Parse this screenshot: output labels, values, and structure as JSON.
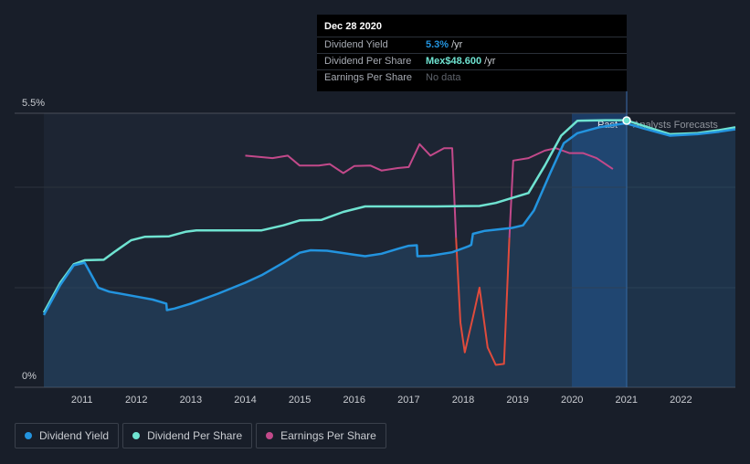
{
  "tooltip": {
    "date": "Dec 28 2020",
    "dividend_yield_label": "Dividend Yield",
    "dividend_yield_value": "5.3%",
    "dividend_yield_unit": "/yr",
    "dps_label": "Dividend Per Share",
    "dps_value": "Mex$48.600",
    "dps_unit": "/yr",
    "eps_label": "Earnings Per Share",
    "eps_value": "No data"
  },
  "regions": {
    "past": "Past",
    "forecast": "Analysts Forecasts"
  },
  "legend": {
    "dividend_yield": "Dividend Yield",
    "dividend_per_share": "Dividend Per Share",
    "earnings_per_share": "Earnings Per Share"
  },
  "colors": {
    "background": "#181e29",
    "dividend_yield": "#2394df",
    "dividend_per_share": "#6fe3d1",
    "earnings_per_share": "#c2498a",
    "eps_negative": "#e04b3c",
    "past_region": "#1d2533",
    "tooltip_yield": "#2394df",
    "tooltip_dps": "#6fe3d1"
  },
  "chart_data": {
    "type": "line",
    "y_axis_ticks": [
      "0%",
      "5.5%"
    ],
    "ylim_percent": [
      0,
      5.5
    ],
    "x_ticks": [
      "2011",
      "2012",
      "2013",
      "2014",
      "2015",
      "2016",
      "2017",
      "2018",
      "2019",
      "2020",
      "2021",
      "2022"
    ],
    "xlim": [
      2010.3,
      2023.0
    ],
    "highlight_date": 2020.99,
    "forecast_start": 2020.99,
    "series": [
      {
        "name": "Dividend Yield",
        "key": "dividend_yield",
        "unit": "% (scaled 0-5.5)",
        "points": [
          [
            2010.3,
            1.45
          ],
          [
            2010.6,
            2.05
          ],
          [
            2010.85,
            2.45
          ],
          [
            2011.05,
            2.5
          ],
          [
            2011.15,
            2.3
          ],
          [
            2011.3,
            2.0
          ],
          [
            2011.5,
            1.92
          ],
          [
            2012.0,
            1.82
          ],
          [
            2012.3,
            1.76
          ],
          [
            2012.55,
            1.68
          ],
          [
            2012.56,
            1.55
          ],
          [
            2012.7,
            1.58
          ],
          [
            2013.0,
            1.68
          ],
          [
            2013.5,
            1.88
          ],
          [
            2014.0,
            2.1
          ],
          [
            2014.3,
            2.25
          ],
          [
            2014.7,
            2.5
          ],
          [
            2015.0,
            2.7
          ],
          [
            2015.2,
            2.75
          ],
          [
            2015.5,
            2.74
          ],
          [
            2016.0,
            2.66
          ],
          [
            2016.2,
            2.63
          ],
          [
            2016.5,
            2.68
          ],
          [
            2016.8,
            2.78
          ],
          [
            2017.0,
            2.84
          ],
          [
            2017.15,
            2.85
          ],
          [
            2017.16,
            2.63
          ],
          [
            2017.4,
            2.64
          ],
          [
            2017.8,
            2.71
          ],
          [
            2018.1,
            2.83
          ],
          [
            2018.15,
            2.86
          ],
          [
            2018.18,
            3.08
          ],
          [
            2018.4,
            3.14
          ],
          [
            2018.9,
            3.2
          ],
          [
            2019.1,
            3.25
          ],
          [
            2019.3,
            3.55
          ],
          [
            2019.6,
            4.3
          ],
          [
            2019.85,
            4.9
          ],
          [
            2020.1,
            5.1
          ],
          [
            2020.5,
            5.22
          ],
          [
            2020.99,
            5.3
          ],
          [
            2021.3,
            5.2
          ],
          [
            2021.8,
            5.05
          ],
          [
            2022.3,
            5.08
          ],
          [
            2022.7,
            5.13
          ],
          [
            2023.0,
            5.18
          ]
        ]
      },
      {
        "name": "Dividend Per Share",
        "key": "dividend_per_share",
        "unit": "scaled 0-5.5",
        "points": [
          [
            2010.3,
            1.5
          ],
          [
            2010.6,
            2.1
          ],
          [
            2010.85,
            2.47
          ],
          [
            2011.05,
            2.55
          ],
          [
            2011.4,
            2.56
          ],
          [
            2011.6,
            2.72
          ],
          [
            2011.9,
            2.95
          ],
          [
            2012.15,
            3.02
          ],
          [
            2012.6,
            3.03
          ],
          [
            2012.9,
            3.12
          ],
          [
            2013.1,
            3.15
          ],
          [
            2014.3,
            3.15
          ],
          [
            2014.7,
            3.25
          ],
          [
            2015.0,
            3.35
          ],
          [
            2015.4,
            3.36
          ],
          [
            2015.8,
            3.52
          ],
          [
            2016.2,
            3.63
          ],
          [
            2017.0,
            3.63
          ],
          [
            2017.5,
            3.63
          ],
          [
            2018.3,
            3.64
          ],
          [
            2018.6,
            3.7
          ],
          [
            2018.9,
            3.8
          ],
          [
            2019.2,
            3.9
          ],
          [
            2019.5,
            4.45
          ],
          [
            2019.8,
            5.05
          ],
          [
            2020.1,
            5.35
          ],
          [
            2020.6,
            5.36
          ],
          [
            2020.99,
            5.36
          ],
          [
            2021.3,
            5.25
          ],
          [
            2021.8,
            5.08
          ],
          [
            2022.3,
            5.1
          ],
          [
            2022.7,
            5.16
          ],
          [
            2023.0,
            5.22
          ]
        ]
      },
      {
        "name": "Earnings Per Share",
        "key": "earnings_per_share",
        "unit": "scaled 0-5.5",
        "points": [
          [
            2014.0,
            4.65
          ],
          [
            2014.5,
            4.6
          ],
          [
            2014.78,
            4.65
          ],
          [
            2015.0,
            4.45
          ],
          [
            2015.35,
            4.45
          ],
          [
            2015.55,
            4.48
          ],
          [
            2015.8,
            4.3
          ],
          [
            2016.0,
            4.44
          ],
          [
            2016.3,
            4.45
          ],
          [
            2016.5,
            4.35
          ],
          [
            2016.8,
            4.4
          ],
          [
            2017.0,
            4.42
          ],
          [
            2017.2,
            4.88
          ],
          [
            2017.4,
            4.65
          ],
          [
            2017.65,
            4.8
          ],
          [
            2017.8,
            4.8
          ],
          [
            2017.87,
            3.0
          ],
          [
            2017.95,
            1.3
          ],
          [
            2018.03,
            0.7
          ],
          [
            2018.2,
            1.5
          ],
          [
            2018.3,
            2.0
          ],
          [
            2018.45,
            0.8
          ],
          [
            2018.6,
            0.45
          ],
          [
            2018.75,
            0.47
          ],
          [
            2018.85,
            3.0
          ],
          [
            2018.92,
            4.55
          ],
          [
            2019.2,
            4.6
          ],
          [
            2019.5,
            4.75
          ],
          [
            2019.7,
            4.8
          ],
          [
            2019.95,
            4.7
          ],
          [
            2020.2,
            4.7
          ],
          [
            2020.45,
            4.6
          ],
          [
            2020.75,
            4.38
          ]
        ]
      }
    ]
  }
}
